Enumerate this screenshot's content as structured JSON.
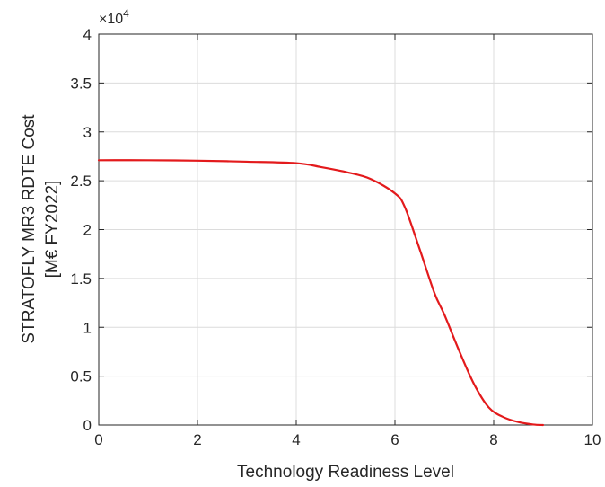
{
  "chart_data": {
    "type": "line",
    "title": "",
    "xlabel": "Technology Readiness Level",
    "ylabel_lines": [
      "STRATOFLY MR3 RDTE Cost",
      "[M€ FY2022]"
    ],
    "xlim": [
      0,
      10
    ],
    "ylim": [
      0,
      40000
    ],
    "x_ticks": [
      0,
      2,
      4,
      6,
      8,
      10
    ],
    "x_tick_labels": [
      "0",
      "2",
      "4",
      "6",
      "8",
      "10"
    ],
    "y_ticks": [
      0,
      5000,
      10000,
      15000,
      20000,
      25000,
      30000,
      35000,
      40000
    ],
    "y_tick_labels": [
      "0",
      "0.5",
      "1",
      "1.5",
      "2",
      "2.5",
      "3",
      "3.5",
      "4"
    ],
    "y_exponent_base": "×10",
    "y_exponent_power": "4",
    "grid": true,
    "series": [
      {
        "color": "#e31a1c",
        "x": [
          0,
          1,
          2,
          3,
          4,
          4.5,
          5,
          5.5,
          6,
          6.2,
          6.5,
          6.8,
          7,
          7.3,
          7.6,
          7.9,
          8.2,
          8.5,
          8.8,
          9
        ],
        "y": [
          27100,
          27100,
          27050,
          26950,
          26800,
          26400,
          25900,
          25200,
          23700,
          22300,
          18000,
          13500,
          11300,
          7600,
          4200,
          1800,
          800,
          300,
          50,
          0
        ]
      }
    ]
  }
}
